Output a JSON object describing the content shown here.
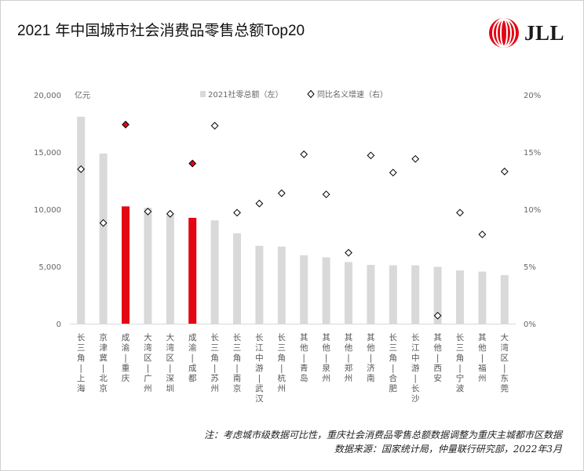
{
  "title_year": "2021",
  "title_main": "年中国城市社会消费品零售总额",
  "title_suffix": "Top20",
  "logo": {
    "text": "JLL",
    "color": "#e30613"
  },
  "notes": {
    "line1": "注：考虑城市级数据可比性，重庆社会消费品零售总额数据调整为重庆主城都市区数据",
    "line2": "数据来源：国家统计局，仲量联行研究部，2022年3月"
  },
  "colors": {
    "bar": "#d9d9d9",
    "highlight": "#e30613",
    "marker_fill": "#ffffff",
    "marker_stroke": "#000000"
  },
  "chart_data": {
    "type": "bar+scatter",
    "unit_label": "亿元",
    "legend": {
      "bar": "2021社零总额（左）",
      "marker": "同比名义增速（右）"
    },
    "categories": [
      "长三角—上海",
      "京津冀—北京",
      "成渝—重庆",
      "大湾区—广州",
      "大湾区—深圳",
      "成渝—成都",
      "长三角—苏州",
      "长三角—南京",
      "长江中游—武汉",
      "长三角—杭州",
      "其他—青岛",
      "其他—泉州",
      "其他—郑州",
      "其他—济南",
      "长三角—合肥",
      "长江中游—长沙",
      "其他—西安",
      "长三角—宁波",
      "其他—福州",
      "大湾区—东莞"
    ],
    "highlight": [
      false,
      false,
      true,
      false,
      false,
      true,
      false,
      false,
      false,
      false,
      false,
      false,
      false,
      false,
      false,
      false,
      false,
      false,
      false,
      false
    ],
    "series": [
      {
        "name": "2021社零总额（左）",
        "axis": "left",
        "kind": "bar",
        "values": [
          18080,
          14870,
          10250,
          10120,
          9500,
          9250,
          9030,
          7900,
          6800,
          6740,
          5980,
          5800,
          5390,
          5140,
          5100,
          5100,
          4960,
          4650,
          4550,
          4240
        ]
      },
      {
        "name": "同比名义增速（右）",
        "axis": "right",
        "kind": "marker",
        "values": [
          13.5,
          8.8,
          17.4,
          9.8,
          9.6,
          14.0,
          17.3,
          9.7,
          10.5,
          11.4,
          14.8,
          11.3,
          6.2,
          14.7,
          13.2,
          14.4,
          0.7,
          9.7,
          7.8,
          13.3
        ]
      }
    ],
    "y_left": {
      "min": 0,
      "max": 20000,
      "ticks": [
        "0",
        "5,000",
        "10,000",
        "15,000",
        "20,000"
      ],
      "tick_values": [
        0,
        5000,
        10000,
        15000,
        20000
      ]
    },
    "y_right": {
      "min": 0,
      "max": 20,
      "ticks": [
        "0%",
        "5%",
        "10%",
        "15%",
        "20%"
      ],
      "tick_values": [
        0,
        5,
        10,
        15,
        20
      ]
    },
    "grid": false
  }
}
